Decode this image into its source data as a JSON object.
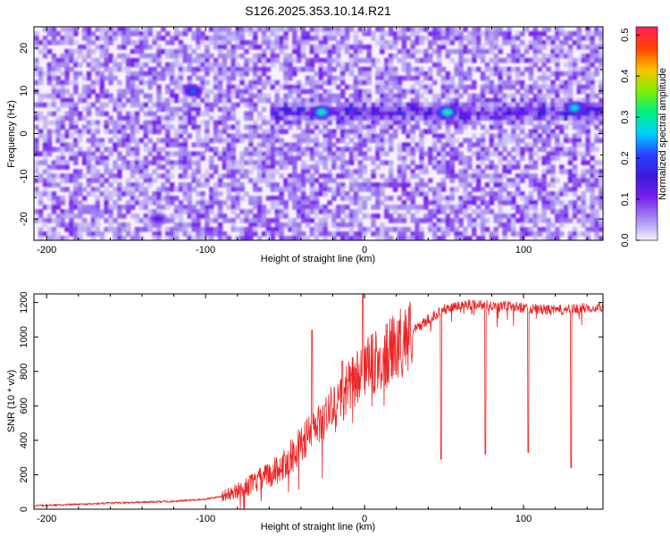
{
  "chart_data": [
    {
      "type": "heatmap",
      "title": "S126.2025.353.10.14.R21",
      "xlabel": "Height of straight line (km)",
      "ylabel": "Frequency (Hz)",
      "xlim": [
        -208,
        150
      ],
      "ylim": [
        -25,
        25
      ],
      "xticks": [
        -200,
        -100,
        0,
        100
      ],
      "yticks": [
        -20,
        -10,
        0,
        10,
        20
      ],
      "colorbar": {
        "label": "Normalized spectral amplitude",
        "range": [
          0.0,
          0.52
        ],
        "ticks": [
          "0.0",
          "0.1",
          "0.2",
          "0.3",
          "0.4",
          "0.5"
        ],
        "colors": [
          "#f4f0fb",
          "#a48cf0",
          "#7a20ee",
          "#3a1ad8",
          "#2a40ff",
          "#00d0ff",
          "#00f080",
          "#80f000",
          "#ffc000",
          "#ff4000",
          "#ff2060"
        ]
      },
      "features": [
        {
          "name": "ridge",
          "x_start": -60,
          "x_end": 150,
          "frequency": 5
        },
        {
          "name": "blob",
          "x": -108,
          "frequency": 10,
          "amplitude": 0.22
        },
        {
          "name": "blob",
          "x": -27,
          "frequency": 5,
          "amplitude": 0.32
        },
        {
          "name": "blob",
          "x": 52,
          "frequency": 5,
          "amplitude": 0.33
        },
        {
          "name": "blob",
          "x": 132,
          "frequency": 6,
          "amplitude": 0.3
        },
        {
          "name": "blob",
          "x": -130,
          "frequency": -20,
          "amplitude": 0.14
        }
      ]
    },
    {
      "type": "line",
      "title": "",
      "xlabel": "Height of straight line (km)",
      "ylabel": "SNR (10 * v/v)",
      "xlim": [
        -208,
        150
      ],
      "ylim": [
        0,
        1250
      ],
      "xticks": [
        -200,
        -100,
        0,
        100
      ],
      "yticks": [
        0,
        200,
        400,
        600,
        800,
        1000,
        1200
      ],
      "color": "#ee2222",
      "series": [
        {
          "name": "SNR",
          "x": [
            -208,
            -180,
            -150,
            -120,
            -100,
            -90,
            -80,
            -70,
            -60,
            -50,
            -45,
            -40,
            -35,
            -30,
            -25,
            -20,
            -15,
            -10,
            -5,
            0,
            5,
            10,
            15,
            20,
            25,
            30,
            40,
            50,
            60,
            70,
            80,
            90,
            100,
            110,
            120,
            130,
            140,
            150
          ],
          "values": [
            20,
            28,
            38,
            46,
            58,
            75,
            105,
            150,
            200,
            260,
            320,
            380,
            430,
            480,
            530,
            590,
            640,
            700,
            760,
            820,
            840,
            870,
            900,
            940,
            990,
            1030,
            1100,
            1160,
            1185,
            1190,
            1185,
            1180,
            1170,
            1160,
            1155,
            1160,
            1170,
            1175
          ]
        }
      ],
      "spikes": [
        {
          "x": 48,
          "min": 290
        },
        {
          "x": 76,
          "min": 320
        },
        {
          "x": 103,
          "min": 330
        },
        {
          "x": 130,
          "min": 240
        },
        {
          "x": -1,
          "max": 1250
        },
        {
          "x": -33,
          "max": 1040
        },
        {
          "x": -14,
          "max": 860
        }
      ]
    }
  ]
}
